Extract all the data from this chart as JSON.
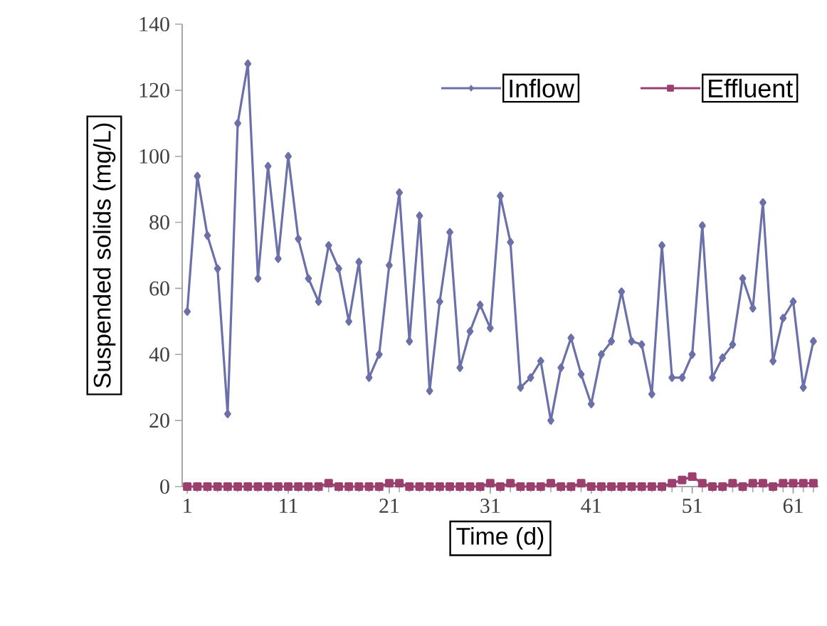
{
  "chart_data": {
    "type": "line",
    "xlabel": "Time (d)",
    "ylabel": "Suspended solids (mg/L)",
    "x": [
      1,
      2,
      3,
      4,
      5,
      6,
      7,
      8,
      9,
      10,
      11,
      12,
      13,
      14,
      15,
      16,
      17,
      18,
      19,
      20,
      21,
      22,
      23,
      24,
      25,
      26,
      27,
      28,
      29,
      30,
      31,
      32,
      33,
      34,
      35,
      36,
      37,
      38,
      39,
      40,
      41,
      42,
      43,
      44,
      45,
      46,
      47,
      48,
      49,
      50,
      51,
      52,
      53,
      54,
      55,
      56,
      57,
      58,
      59,
      60,
      61,
      62,
      63
    ],
    "xlim": [
      0.5,
      63.5
    ],
    "xticks": [
      1,
      11,
      21,
      31,
      41,
      51,
      61
    ],
    "ylim": [
      0,
      140
    ],
    "yticks": [
      0,
      20,
      40,
      60,
      80,
      100,
      120,
      140
    ],
    "grid": false,
    "legend": "top right",
    "line_style": "solid",
    "series": [
      {
        "name": "Inflow",
        "color": "#6b70a8",
        "marker": "diamond",
        "values": [
          53,
          94,
          76,
          66,
          22,
          110,
          128,
          63,
          97,
          69,
          100,
          75,
          63,
          56,
          73,
          66,
          50,
          68,
          33,
          40,
          67,
          89,
          44,
          82,
          29,
          56,
          77,
          36,
          47,
          55,
          48,
          88,
          74,
          30,
          33,
          38,
          20,
          36,
          45,
          34,
          25,
          40,
          44,
          59,
          44,
          43,
          28,
          73,
          33,
          33,
          40,
          79,
          33,
          39,
          43,
          63,
          54,
          86,
          38,
          51,
          56,
          30,
          44
        ]
      },
      {
        "name": "Effluent",
        "color": "#9b3f6e",
        "marker": "square",
        "values": [
          0,
          0,
          0,
          0,
          0,
          0,
          0,
          0,
          0,
          0,
          0,
          0,
          0,
          0,
          1,
          0,
          0,
          0,
          0,
          0,
          1,
          1,
          0,
          0,
          0,
          0,
          0,
          0,
          0,
          0,
          1,
          0,
          1,
          0,
          0,
          0,
          1,
          0,
          0,
          1,
          0,
          0,
          0,
          0,
          0,
          0,
          0,
          0,
          1,
          2,
          3,
          1,
          0,
          0,
          1,
          0,
          1,
          1,
          0,
          1,
          1,
          1,
          1
        ]
      }
    ]
  }
}
